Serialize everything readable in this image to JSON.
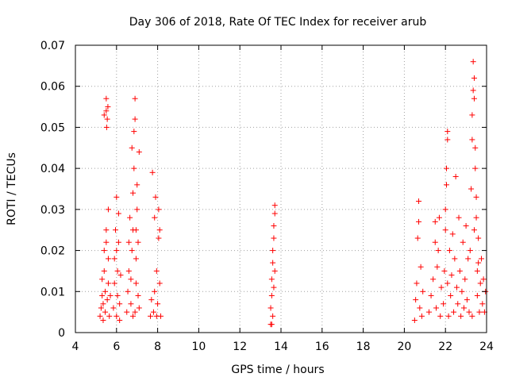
{
  "chart_data": {
    "type": "scatter",
    "title": "Day 306 of 2018, Rate Of TEC Index for receiver arub",
    "xlabel": "GPS time / hours",
    "ylabel": "ROTI / TECUs",
    "xlim": [
      4,
      24
    ],
    "ylim": [
      0,
      0.07
    ],
    "xticks": [
      4,
      6,
      8,
      10,
      12,
      14,
      16,
      18,
      20,
      22,
      24
    ],
    "yticks": [
      0,
      0.01,
      0.02,
      0.03,
      0.04,
      0.05,
      0.06,
      0.07
    ],
    "xtick_labels": [
      "4",
      "6",
      "8",
      "10",
      "12",
      "14",
      "16",
      "18",
      "20",
      "22",
      "24"
    ],
    "ytick_labels": [
      "0",
      "0.01",
      "0.02",
      "0.03",
      "0.04",
      "0.05",
      "0.06",
      "0.07"
    ],
    "grid": true,
    "marker": "+",
    "color": "#ff0000",
    "series": [
      {
        "name": "ROTI",
        "points": [
          [
            5.2,
            0.004
          ],
          [
            5.25,
            0.006
          ],
          [
            5.3,
            0.009
          ],
          [
            5.3,
            0.013
          ],
          [
            5.35,
            0.003
          ],
          [
            5.35,
            0.007
          ],
          [
            5.4,
            0.015
          ],
          [
            5.4,
            0.02
          ],
          [
            5.45,
            0.005
          ],
          [
            5.45,
            0.01
          ],
          [
            5.5,
            0.022
          ],
          [
            5.5,
            0.025
          ],
          [
            5.5,
            0.054
          ],
          [
            5.5,
            0.057
          ],
          [
            5.52,
            0.05
          ],
          [
            5.55,
            0.052
          ],
          [
            5.55,
            0.008
          ],
          [
            5.6,
            0.03
          ],
          [
            5.6,
            0.012
          ],
          [
            5.6,
            0.018
          ],
          [
            5.65,
            0.004
          ],
          [
            5.7,
            0.009
          ],
          [
            5.4,
            0.053
          ],
          [
            5.58,
            0.055
          ],
          [
            5.85,
            0.006
          ],
          [
            5.9,
            0.012
          ],
          [
            5.9,
            0.018
          ],
          [
            5.95,
            0.025
          ],
          [
            6.0,
            0.033
          ],
          [
            6.0,
            0.004
          ],
          [
            6.05,
            0.009
          ],
          [
            6.05,
            0.015
          ],
          [
            6.1,
            0.022
          ],
          [
            6.1,
            0.029
          ],
          [
            6.15,
            0.007
          ],
          [
            6.15,
            0.003
          ],
          [
            6.2,
            0.014
          ],
          [
            6.0,
            0.02
          ],
          [
            6.5,
            0.005
          ],
          [
            6.55,
            0.01
          ],
          [
            6.6,
            0.015
          ],
          [
            6.6,
            0.022
          ],
          [
            6.65,
            0.028
          ],
          [
            6.7,
            0.007
          ],
          [
            6.7,
            0.013
          ],
          [
            6.75,
            0.02
          ],
          [
            6.8,
            0.025
          ],
          [
            6.8,
            0.034
          ],
          [
            6.85,
            0.04
          ],
          [
            6.85,
            0.049
          ],
          [
            6.9,
            0.057
          ],
          [
            6.9,
            0.052
          ],
          [
            6.9,
            0.005
          ],
          [
            6.95,
            0.012
          ],
          [
            6.95,
            0.018
          ],
          [
            7.0,
            0.03
          ],
          [
            7.0,
            0.036
          ],
          [
            7.05,
            0.009
          ],
          [
            7.05,
            0.022
          ],
          [
            7.1,
            0.044
          ],
          [
            7.1,
            0.006
          ],
          [
            6.75,
            0.045
          ],
          [
            6.8,
            0.004
          ],
          [
            6.95,
            0.025
          ],
          [
            7.65,
            0.004
          ],
          [
            7.7,
            0.008
          ],
          [
            7.75,
            0.039
          ],
          [
            7.8,
            0.005
          ],
          [
            7.85,
            0.01
          ],
          [
            7.85,
            0.028
          ],
          [
            7.9,
            0.033
          ],
          [
            7.95,
            0.004
          ],
          [
            7.95,
            0.015
          ],
          [
            8.0,
            0.007
          ],
          [
            8.05,
            0.023
          ],
          [
            8.1,
            0.025
          ],
          [
            8.1,
            0.012
          ],
          [
            8.15,
            0.004
          ],
          [
            8.05,
            0.03
          ],
          [
            13.5,
            0.002
          ],
          [
            13.5,
            0.006
          ],
          [
            13.55,
            0.009
          ],
          [
            13.55,
            0.013
          ],
          [
            13.6,
            0.017
          ],
          [
            13.6,
            0.02
          ],
          [
            13.65,
            0.023
          ],
          [
            13.65,
            0.026
          ],
          [
            13.7,
            0.029
          ],
          [
            13.7,
            0.031
          ],
          [
            13.6,
            0.004
          ],
          [
            13.55,
            0.002
          ],
          [
            13.65,
            0.011
          ],
          [
            13.7,
            0.015
          ],
          [
            20.5,
            0.003
          ],
          [
            20.55,
            0.008
          ],
          [
            20.6,
            0.012
          ],
          [
            20.65,
            0.023
          ],
          [
            20.7,
            0.027
          ],
          [
            20.7,
            0.032
          ],
          [
            20.75,
            0.006
          ],
          [
            20.8,
            0.016
          ],
          [
            20.85,
            0.004
          ],
          [
            20.9,
            0.01
          ],
          [
            21.2,
            0.005
          ],
          [
            21.3,
            0.009
          ],
          [
            21.4,
            0.013
          ],
          [
            21.5,
            0.022
          ],
          [
            21.5,
            0.027
          ],
          [
            21.55,
            0.006
          ],
          [
            21.6,
            0.016
          ],
          [
            21.65,
            0.02
          ],
          [
            21.7,
            0.028
          ],
          [
            21.75,
            0.004
          ],
          [
            21.8,
            0.011
          ],
          [
            21.9,
            0.007
          ],
          [
            21.95,
            0.015
          ],
          [
            22.0,
            0.025
          ],
          [
            22.0,
            0.03
          ],
          [
            22.05,
            0.036
          ],
          [
            22.05,
            0.04
          ],
          [
            22.1,
            0.047
          ],
          [
            22.1,
            0.049
          ],
          [
            22.1,
            0.012
          ],
          [
            22.15,
            0.004
          ],
          [
            22.2,
            0.02
          ],
          [
            22.25,
            0.009
          ],
          [
            22.3,
            0.014
          ],
          [
            22.35,
            0.024
          ],
          [
            22.4,
            0.005
          ],
          [
            22.45,
            0.018
          ],
          [
            22.5,
            0.038
          ],
          [
            22.55,
            0.011
          ],
          [
            22.6,
            0.007
          ],
          [
            22.65,
            0.028
          ],
          [
            22.7,
            0.015
          ],
          [
            22.75,
            0.004
          ],
          [
            22.8,
            0.01
          ],
          [
            22.85,
            0.022
          ],
          [
            22.9,
            0.006
          ],
          [
            22.95,
            0.013
          ],
          [
            23.0,
            0.026
          ],
          [
            23.05,
            0.008
          ],
          [
            23.1,
            0.018
          ],
          [
            23.15,
            0.005
          ],
          [
            23.2,
            0.02
          ],
          [
            23.25,
            0.035
          ],
          [
            23.3,
            0.047
          ],
          [
            23.3,
            0.053
          ],
          [
            23.35,
            0.059
          ],
          [
            23.35,
            0.066
          ],
          [
            23.4,
            0.062
          ],
          [
            23.4,
            0.057
          ],
          [
            23.45,
            0.045
          ],
          [
            23.45,
            0.04
          ],
          [
            23.5,
            0.033
          ],
          [
            23.5,
            0.028
          ],
          [
            23.55,
            0.015
          ],
          [
            23.55,
            0.009
          ],
          [
            23.6,
            0.023
          ],
          [
            23.65,
            0.005
          ],
          [
            23.7,
            0.012
          ],
          [
            23.75,
            0.018
          ],
          [
            23.8,
            0.007
          ],
          [
            23.85,
            0.013
          ],
          [
            23.9,
            0.005
          ],
          [
            23.95,
            0.01
          ],
          [
            23.3,
            0.004
          ],
          [
            23.4,
            0.025
          ],
          [
            23.6,
            0.017
          ]
        ]
      }
    ]
  }
}
